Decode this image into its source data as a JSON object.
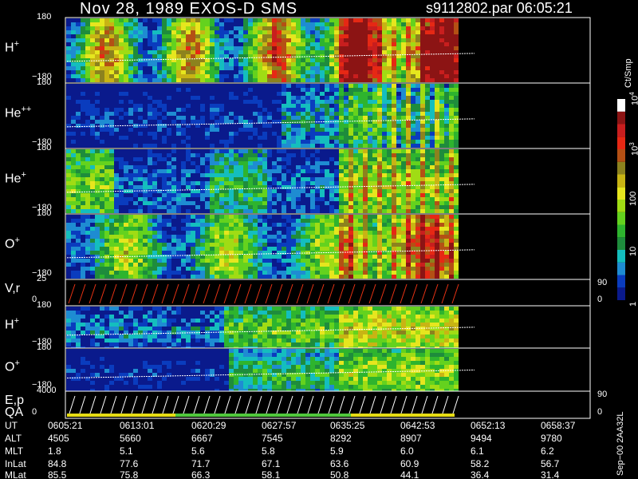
{
  "header": {
    "title": "Nov 28, 1989   EXOS-D SMS",
    "file": "s9112802.par  06:05:21"
  },
  "panels": [
    {
      "id": "h_plus",
      "label": "H",
      "sup": "+",
      "ytop": "180",
      "ybot": "−180"
    },
    {
      "id": "he_pp",
      "label": "He",
      "sup": "++",
      "ytop": "180",
      "ybot": "−180"
    },
    {
      "id": "he_plus",
      "label": "He",
      "sup": "+",
      "ytop": "180",
      "ybot": "−180"
    },
    {
      "id": "o_plus",
      "label": "O",
      "sup": "+",
      "ytop": "180",
      "ybot": "−180"
    },
    {
      "id": "v_r",
      "label": "V,r",
      "sup": "",
      "ytop": "25",
      "ybot": "0",
      "rtop": "90",
      "rbot": "0"
    },
    {
      "id": "h_plus_2",
      "label": "H",
      "sup": "+",
      "ytop": "180",
      "ybot": "−180"
    },
    {
      "id": "o_plus_2",
      "label": "O",
      "sup": "+",
      "ytop": "180",
      "ybot": "−180"
    },
    {
      "id": "e_p_qa",
      "label": "E,p",
      "label2": "QA",
      "sup": "",
      "ytop": "4000",
      "ybot": "0",
      "rtop": "90",
      "rbot": "0"
    }
  ],
  "colorbar": {
    "unit": "Ct/Smp",
    "ticks": [
      {
        "label": "10",
        "sup": "4",
        "level": 1.0
      },
      {
        "label": "10",
        "sup": "3",
        "level": 0.75
      },
      {
        "label": "100",
        "sup": "",
        "level": 0.5
      },
      {
        "label": "10",
        "sup": "",
        "level": 0.25
      },
      {
        "label": "1",
        "sup": "",
        "level": 0.0
      }
    ],
    "colors": [
      "#0a1a8c",
      "#0a3cbe",
      "#1e8cd2",
      "#14bebe",
      "#1e8c3c",
      "#2eb42e",
      "#64d21e",
      "#a0dc14",
      "#e6e61e",
      "#c8b414",
      "#8c821e",
      "#b45014",
      "#e62814",
      "#c81e1e",
      "#8c1414",
      "#ffffff"
    ]
  },
  "chart_data": {
    "type": "heatmap",
    "title": "Nov 28, 1989   EXOS-D SMS",
    "time_axis": {
      "UT": [
        "0605:21",
        "0613:01",
        "0620:29",
        "0627:57",
        "0635:25",
        "0642:53",
        "0652:13",
        "0658:37"
      ],
      "ALT": [
        "4505",
        "5660",
        "6667",
        "7545",
        "8292",
        "8907",
        "9494",
        "9780"
      ],
      "MLT": [
        "1.8",
        "5.1",
        "5.6",
        "5.8",
        "5.9",
        "6.0",
        "6.1",
        "6.2"
      ],
      "InLat": [
        "84.8",
        "77.6",
        "71.7",
        "67.1",
        "63.6",
        "60.9",
        "58.2",
        "56.7"
      ],
      "MLat": [
        "85.5",
        "75.8",
        "66.3",
        "58.1",
        "50.8",
        "44.1",
        "36.4",
        "31.4"
      ]
    },
    "row_labels": [
      "UT",
      "ALT",
      "MLT",
      "InLat",
      "MLat"
    ],
    "data_coverage_fraction": 0.8,
    "colorbar_unit": "Ct/Smp",
    "stamp": "Sep−00  2AA32L"
  }
}
